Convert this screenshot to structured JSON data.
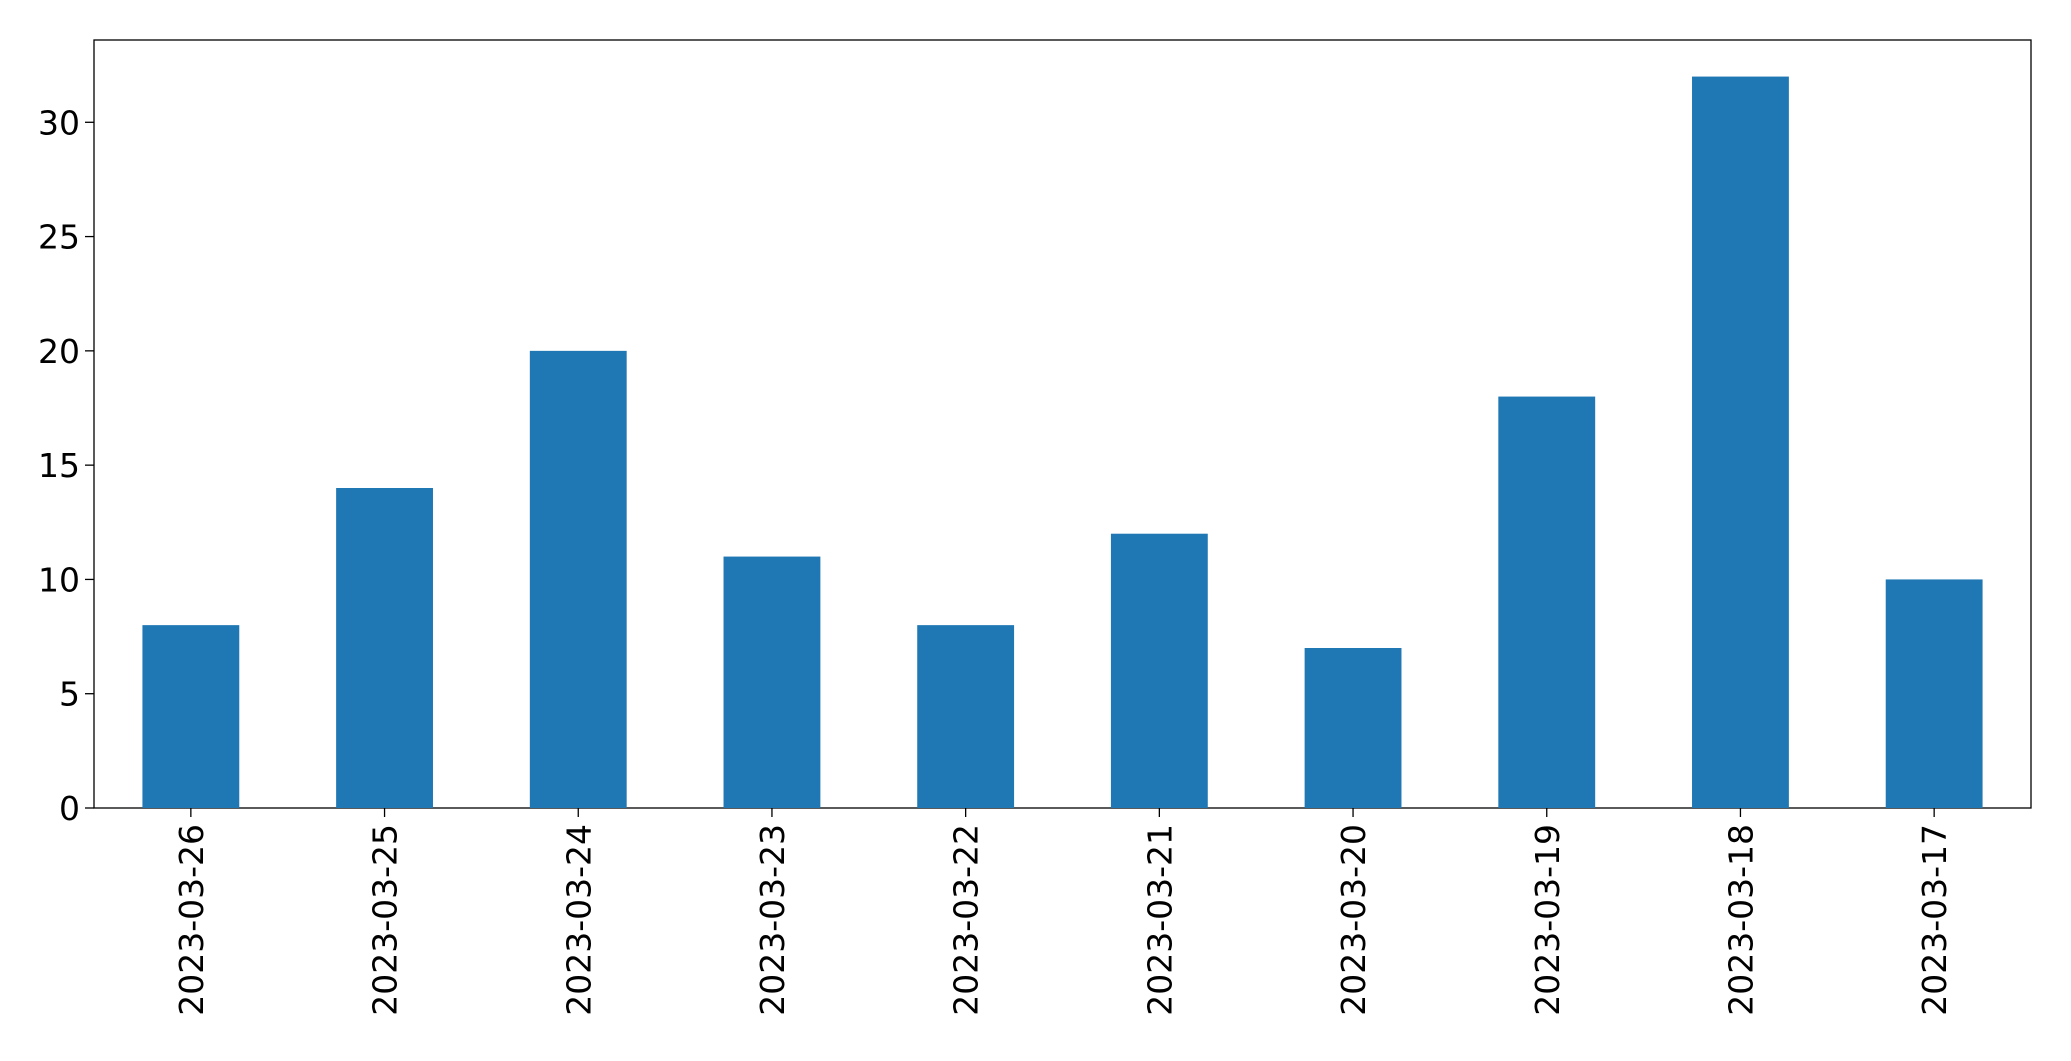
{
  "chart_data": {
    "type": "bar",
    "categories": [
      "2023-03-26",
      "2023-03-25",
      "2023-03-24",
      "2023-03-23",
      "2023-03-22",
      "2023-03-21",
      "2023-03-20",
      "2023-03-19",
      "2023-03-18",
      "2023-03-17"
    ],
    "values": [
      8,
      14,
      20,
      11,
      8,
      12,
      7,
      18,
      32,
      10
    ],
    "color": "#1f77b4",
    "ylim": [
      0,
      33.6
    ],
    "yticks": [
      0,
      5,
      10,
      15,
      20,
      25,
      30
    ],
    "grid": false
  }
}
